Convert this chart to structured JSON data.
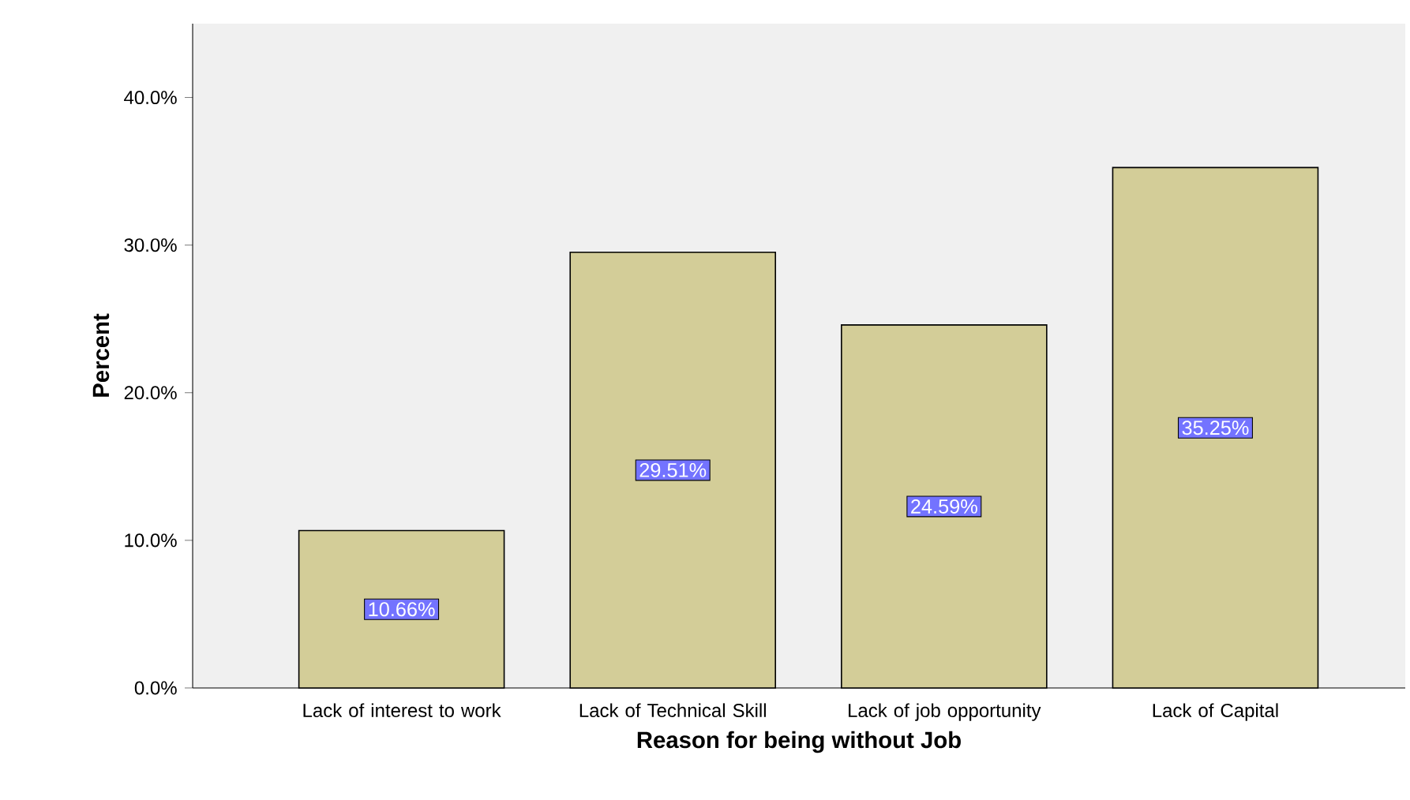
{
  "chart_data": {
    "type": "bar",
    "xlabel": "Reason for being without Job",
    "ylabel": "Percent",
    "categories": [
      "Lack of interest to work",
      "Lack of Technical Skill",
      "Lack of job opportunity",
      "Lack of Capital"
    ],
    "values": [
      10.66,
      29.51,
      24.59,
      35.25
    ],
    "value_labels": [
      "10.66%",
      "29.51%",
      "24.59%",
      "35.25%"
    ],
    "color": "#d3cd98",
    "ylim": [
      0,
      45
    ],
    "yticks": [
      {
        "value": 0,
        "label": "0.0%"
      },
      {
        "value": 10,
        "label": "10.0%"
      },
      {
        "value": 20,
        "label": "20.0%"
      },
      {
        "value": 30,
        "label": "30.0%"
      },
      {
        "value": 40,
        "label": "40.0%"
      }
    ],
    "grid": false
  }
}
